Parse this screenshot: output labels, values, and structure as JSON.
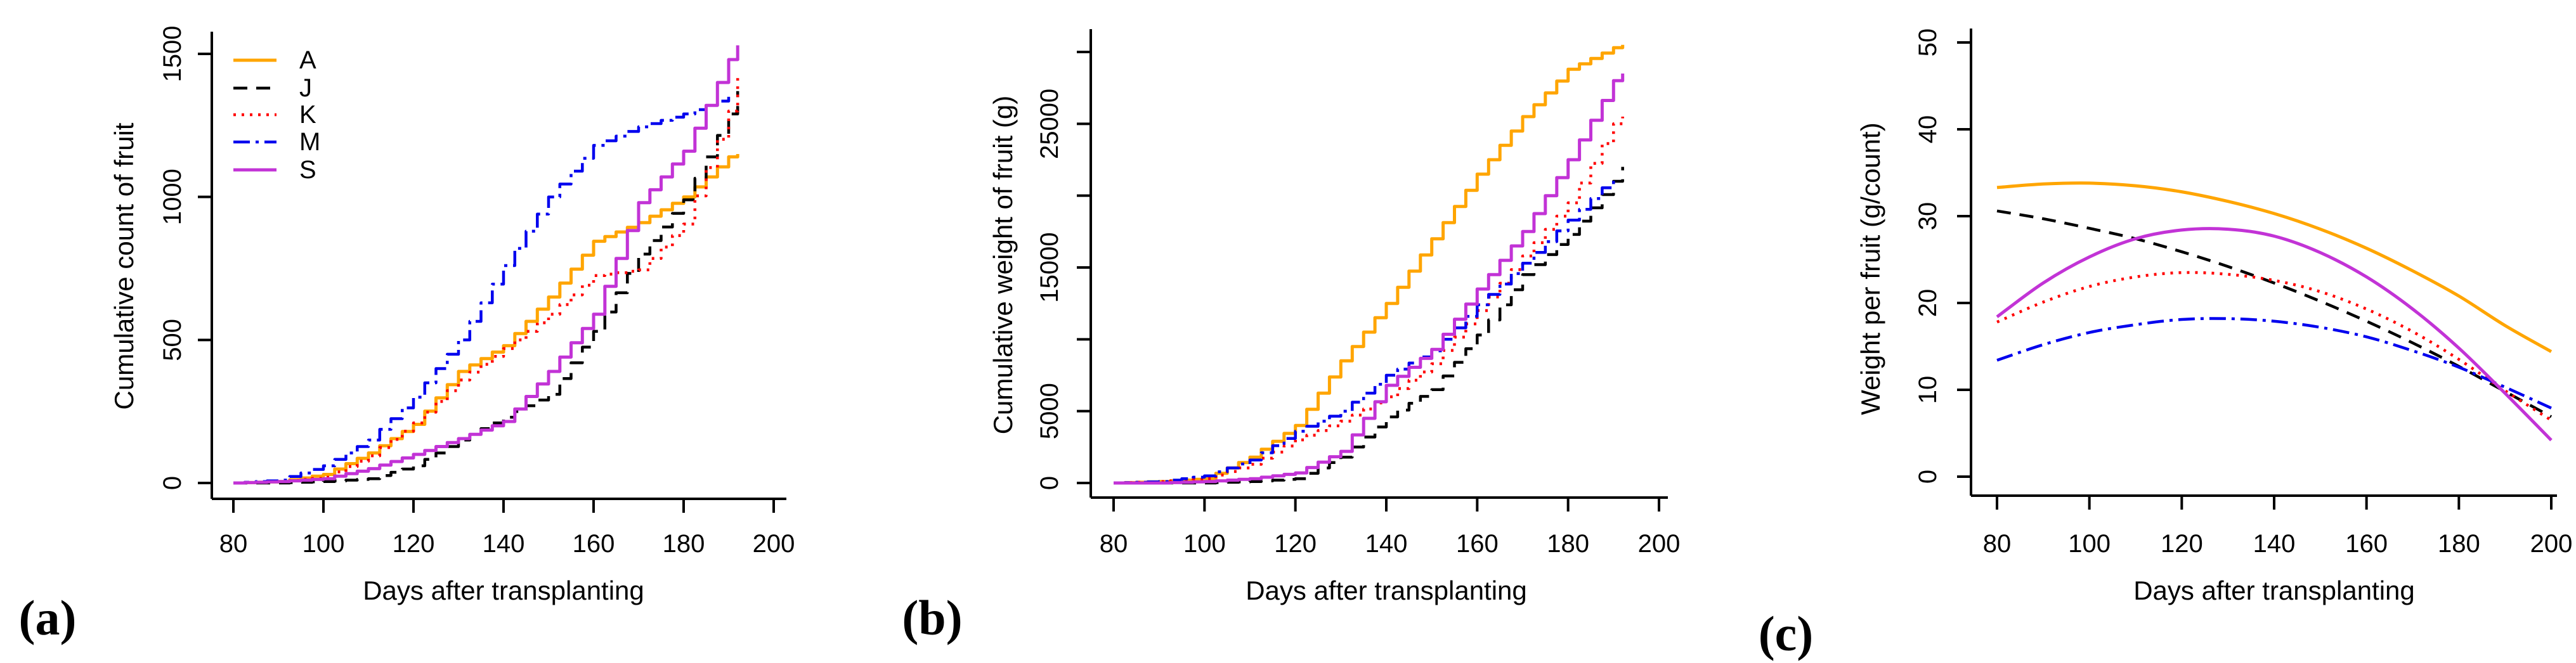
{
  "figure": {
    "background": "#FFFFFF",
    "panels": [
      {
        "letter": "(a)"
      },
      {
        "letter": "(b)"
      },
      {
        "letter": "(c)"
      }
    ]
  },
  "chart_data": [
    {
      "panel": "a",
      "type": "line",
      "variant": "step",
      "title": "",
      "xlabel": "Days after transplanting",
      "ylabel": "Cumulative count of fruit",
      "xlim": [
        75,
        203
      ],
      "ylim": [
        -60,
        1580
      ],
      "xticks": [
        80,
        100,
        120,
        140,
        160,
        180,
        200
      ],
      "yticks": [
        {
          "v": 0,
          "label": "0"
        },
        {
          "v": 500,
          "label": "500"
        },
        {
          "v": 1000,
          "label": "1000"
        },
        {
          "v": 1500,
          "label": "1500"
        }
      ],
      "grid": false,
      "legend": {
        "position": "top-left",
        "entries": [
          "A",
          "J",
          "K",
          "M",
          "S"
        ]
      },
      "x_days": [
        80,
        90,
        100,
        110,
        120,
        130,
        140,
        150,
        160,
        170,
        180,
        190,
        192
      ],
      "series": [
        {
          "name": "A",
          "color": "#FFA500",
          "style": "solid",
          "values": [
            0,
            5,
            30,
            105,
            205,
            390,
            480,
            650,
            845,
            910,
            1000,
            1140,
            1150
          ]
        },
        {
          "name": "J",
          "color": "#000000",
          "style": "dashed",
          "values": [
            0,
            0,
            5,
            15,
            60,
            150,
            230,
            310,
            530,
            800,
            990,
            1290,
            1370
          ]
        },
        {
          "name": "K",
          "color": "#FF0000",
          "style": "dotted",
          "values": [
            0,
            5,
            20,
            95,
            210,
            360,
            470,
            590,
            725,
            745,
            905,
            1300,
            1430
          ]
        },
        {
          "name": "M",
          "color": "#0000EE",
          "style": "dashdot",
          "values": [
            0,
            10,
            60,
            150,
            300,
            500,
            760,
            1000,
            1180,
            1245,
            1290,
            1350,
            null
          ]
        },
        {
          "name": "S",
          "color": "#C233D6",
          "style": "solid",
          "values": [
            0,
            5,
            15,
            50,
            100,
            155,
            215,
            390,
            590,
            980,
            1160,
            1480,
            1530
          ]
        }
      ]
    },
    {
      "panel": "b",
      "type": "line",
      "variant": "step",
      "title": "",
      "xlabel": "Days after transplanting",
      "ylabel": "Cumulative weight of fruit (g)",
      "xlim": [
        75,
        203
      ],
      "ylim": [
        -1200,
        31200
      ],
      "xticks": [
        80,
        100,
        120,
        140,
        160,
        180,
        200
      ],
      "yticks": [
        {
          "v": 0,
          "label": "0"
        },
        {
          "v": 5000,
          "label": "5000"
        },
        {
          "v": 10000,
          "label": ""
        },
        {
          "v": 15000,
          "label": "15000"
        },
        {
          "v": 20000,
          "label": ""
        },
        {
          "v": 25000,
          "label": "25000"
        },
        {
          "v": 30000,
          "label": ""
        }
      ],
      "grid": false,
      "legend": null,
      "x_days": [
        80,
        90,
        100,
        110,
        120,
        130,
        140,
        150,
        160,
        170,
        180,
        190,
        192
      ],
      "series": [
        {
          "name": "A",
          "color": "#FFA500",
          "style": "solid",
          "values": [
            0,
            100,
            300,
            1800,
            4000,
            8500,
            12500,
            17000,
            21500,
            25500,
            28800,
            30300,
            30500
          ]
        },
        {
          "name": "J",
          "color": "#000000",
          "style": "dashed",
          "values": [
            0,
            0,
            0,
            100,
            300,
            1800,
            4600,
            6500,
            10300,
            14500,
            17300,
            21000,
            22000
          ]
        },
        {
          "name": "K",
          "color": "#FF0000",
          "style": "dotted",
          "values": [
            0,
            100,
            300,
            1300,
            3000,
            4300,
            6000,
            8300,
            12000,
            15800,
            19500,
            25000,
            25500
          ]
        },
        {
          "name": "M",
          "color": "#0000EE",
          "style": "dashdot",
          "values": [
            0,
            100,
            500,
            1600,
            3600,
            5000,
            7500,
            9200,
            12400,
            15300,
            18300,
            21300,
            null
          ]
        },
        {
          "name": "S",
          "color": "#C233D6",
          "style": "solid",
          "values": [
            0,
            0,
            100,
            300,
            700,
            2200,
            6800,
            9300,
            13500,
            17500,
            22500,
            28000,
            28500
          ]
        }
      ]
    },
    {
      "panel": "c",
      "type": "line",
      "variant": "smooth",
      "title": "",
      "xlabel": "Days after transplanting",
      "ylabel": "Weight per fruit (g/count)",
      "xlim": [
        75,
        203
      ],
      "ylim": [
        -2,
        52
      ],
      "xticks": [
        80,
        100,
        120,
        140,
        160,
        180,
        200
      ],
      "yticks": [
        {
          "v": 0,
          "label": "0"
        },
        {
          "v": 10,
          "label": "10"
        },
        {
          "v": 20,
          "label": "20"
        },
        {
          "v": 30,
          "label": "30"
        },
        {
          "v": 40,
          "label": "40"
        },
        {
          "v": 50,
          "label": "50"
        }
      ],
      "grid": false,
      "legend": null,
      "x_days": [
        80,
        90,
        100,
        110,
        120,
        130,
        140,
        150,
        160,
        170,
        180,
        190,
        200
      ],
      "series": [
        {
          "name": "A",
          "color": "#FFA500",
          "style": "solid",
          "values": [
            33.3,
            33.7,
            33.8,
            33.5,
            32.8,
            31.7,
            30.3,
            28.5,
            26.3,
            23.7,
            20.8,
            17.4,
            14.4
          ]
        },
        {
          "name": "J",
          "color": "#000000",
          "style": "dashed",
          "values": [
            30.6,
            29.7,
            28.6,
            27.4,
            25.9,
            24.2,
            22.3,
            20.2,
            17.9,
            15.4,
            12.7,
            9.8,
            6.9
          ]
        },
        {
          "name": "K",
          "color": "#FF0000",
          "style": "dotted",
          "values": [
            17.8,
            20.1,
            21.9,
            23.0,
            23.5,
            23.3,
            22.6,
            21.3,
            19.3,
            16.7,
            13.5,
            9.9,
            6.5
          ]
        },
        {
          "name": "M",
          "color": "#0000EE",
          "style": "dashdot",
          "values": [
            13.4,
            15.2,
            16.6,
            17.5,
            18.1,
            18.2,
            17.9,
            17.2,
            16.1,
            14.5,
            12.6,
            10.3,
            7.9
          ]
        },
        {
          "name": "S",
          "color": "#C233D6",
          "style": "solid",
          "values": [
            18.4,
            22.3,
            25.3,
            27.4,
            28.4,
            28.5,
            27.7,
            25.8,
            23.0,
            19.3,
            14.8,
            9.6,
            4.2
          ]
        }
      ]
    }
  ]
}
